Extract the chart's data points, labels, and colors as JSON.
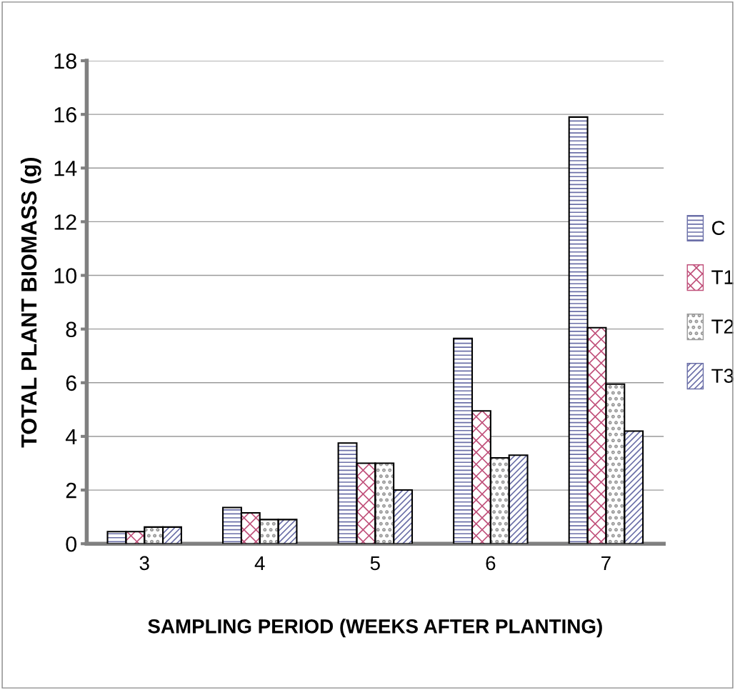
{
  "chart_data": {
    "type": "bar",
    "xlabel": "SAMPLING PERIOD (WEEKS AFTER PLANTING)",
    "ylabel": "TOTAL PLANT BIOMASS (g)",
    "categories": [
      "3",
      "4",
      "5",
      "6",
      "7"
    ],
    "series": [
      {
        "name": "C",
        "color": "#6b6fa8",
        "values": [
          0.45,
          1.35,
          3.75,
          7.65,
          15.9
        ]
      },
      {
        "name": "T1",
        "color": "#c0507a",
        "values": [
          0.45,
          1.15,
          3.0,
          4.95,
          8.05
        ]
      },
      {
        "name": "T2",
        "color": "#9a9a9a",
        "values": [
          0.62,
          0.9,
          3.0,
          3.2,
          5.95
        ]
      },
      {
        "name": "T3",
        "color": "#6b6fa8",
        "values": [
          0.62,
          0.9,
          2.0,
          3.3,
          4.2
        ]
      }
    ],
    "ylim": [
      0,
      18
    ],
    "yticks": [
      0,
      2,
      4,
      6,
      8,
      10,
      12,
      14,
      16,
      18
    ],
    "grid": "y",
    "legend": "right"
  }
}
